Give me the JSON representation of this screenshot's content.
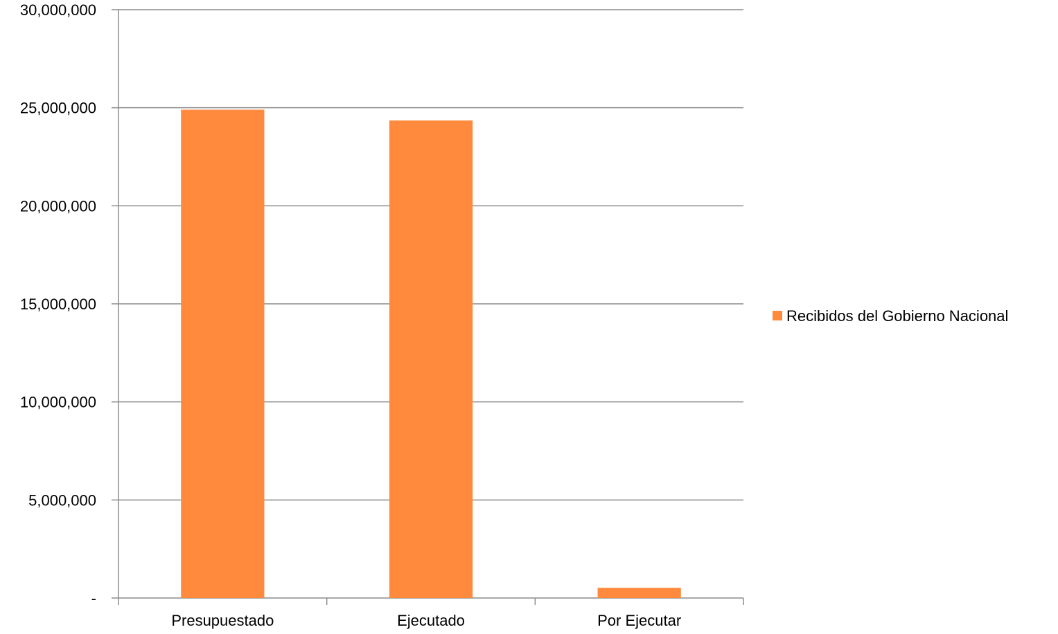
{
  "chart_data": {
    "type": "bar",
    "categories": [
      "Presupuestado",
      "Ejecutado",
      "Por Ejecutar"
    ],
    "series": [
      {
        "name": "Recibidos del Gobierno Nacional",
        "values": [
          24900000,
          24350000,
          520000
        ],
        "color": "#FF8A3D"
      }
    ],
    "ylim": [
      0,
      30000000
    ],
    "yticks": [
      0,
      5000000,
      10000000,
      15000000,
      20000000,
      25000000,
      30000000
    ],
    "ytick_labels": [
      "-",
      "5,000,000",
      "10,000,000",
      "15,000,000",
      "20,000,000",
      "25,000,000",
      "30,000,000"
    ],
    "grid": true,
    "legend_position": "right",
    "title": "",
    "xlabel": "",
    "ylabel": ""
  }
}
